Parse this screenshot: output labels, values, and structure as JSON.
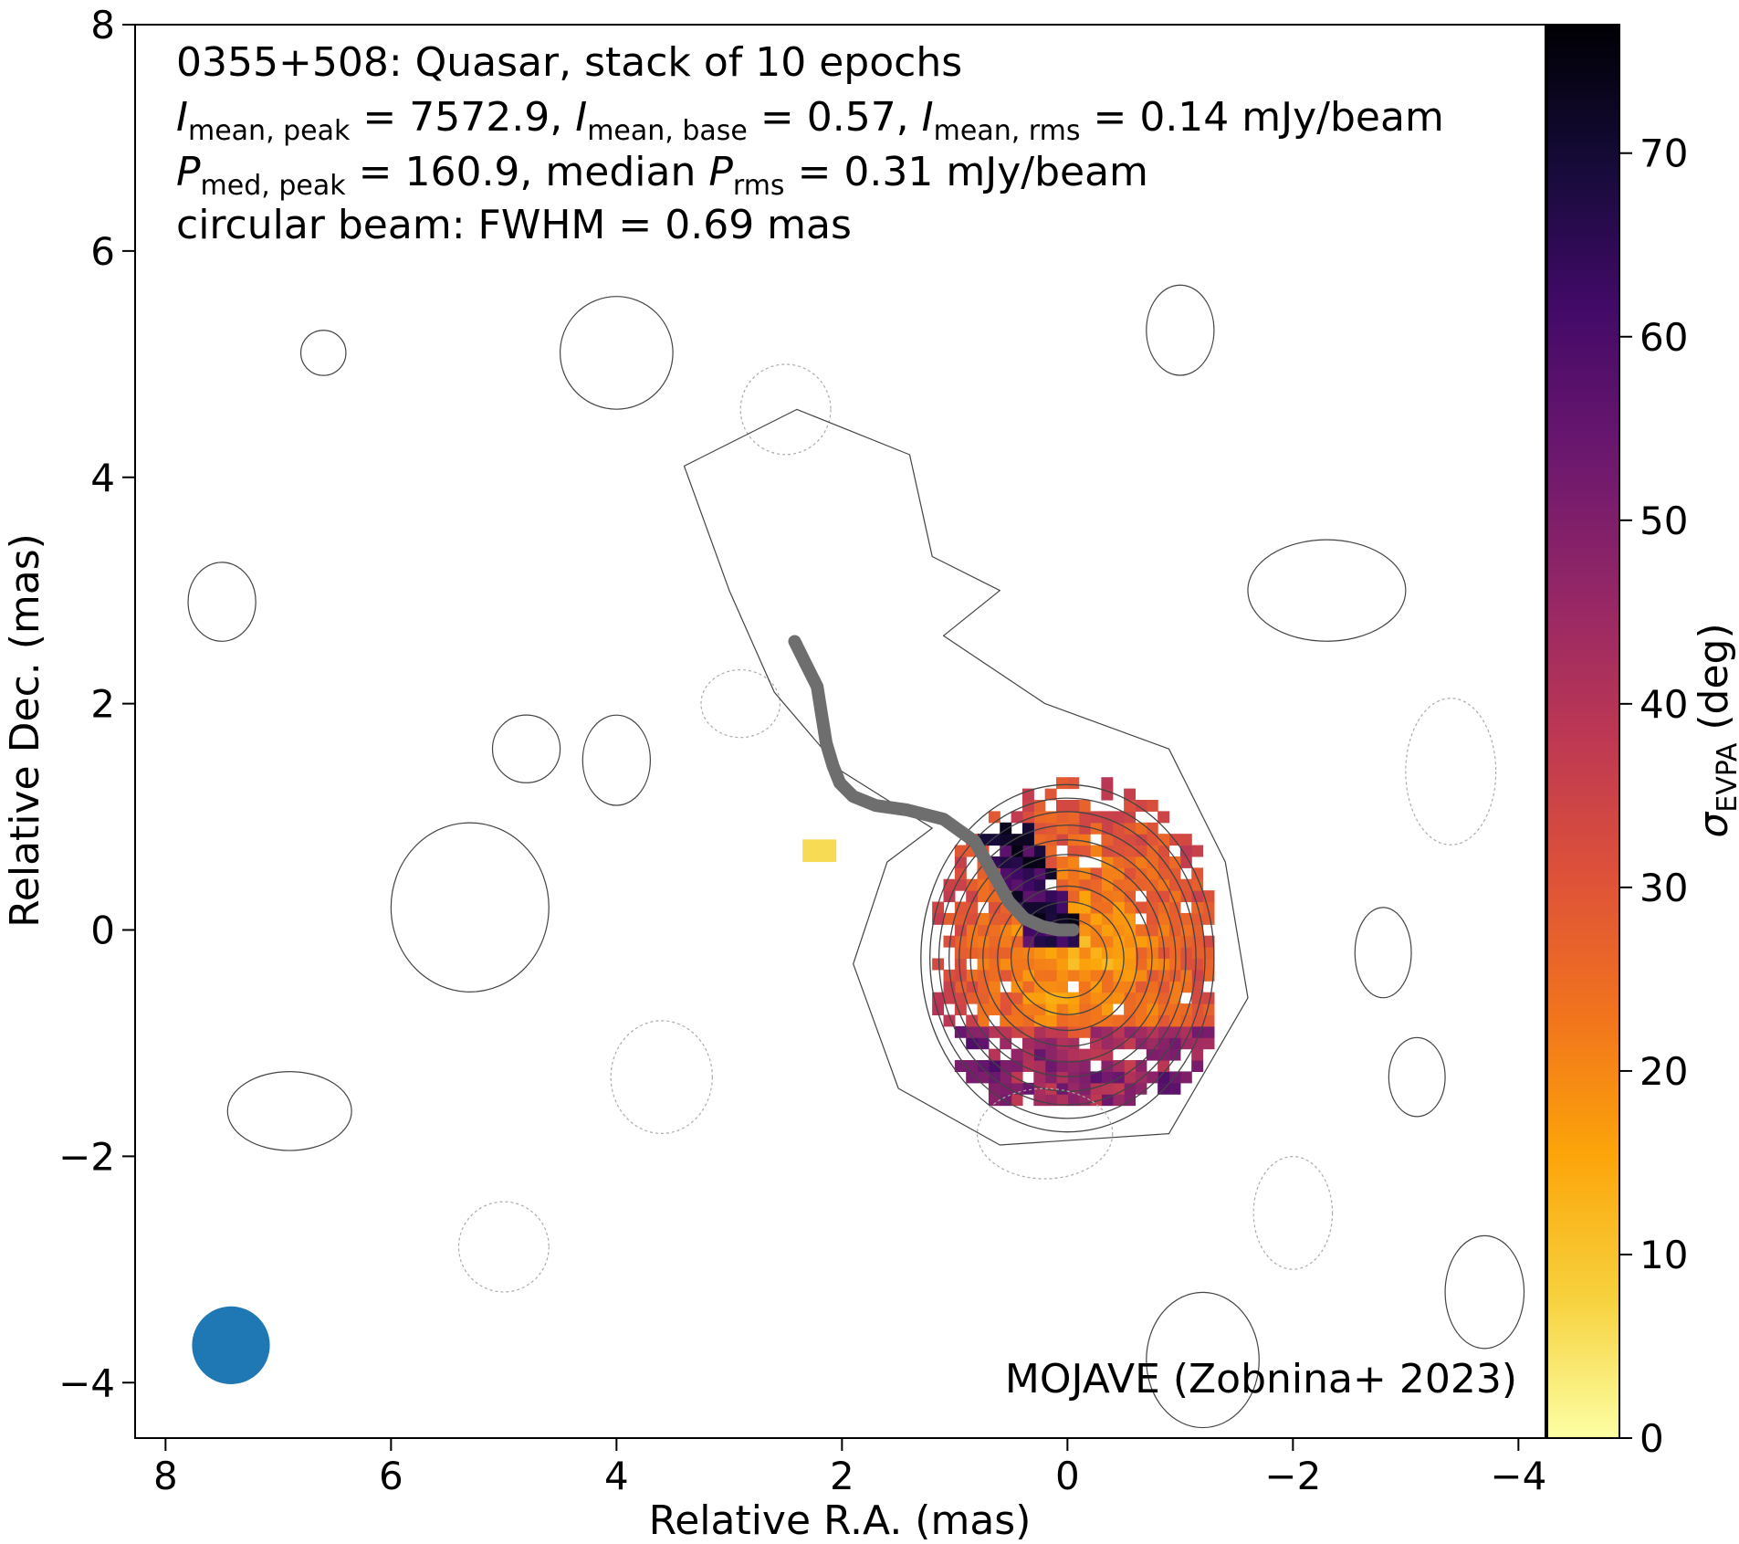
{
  "chart_data": {
    "type": "heatmap",
    "xlabel": "Relative R.A. (mas)",
    "ylabel": "Relative Dec. (mas)",
    "xlim": [
      8.27,
      -4.24
    ],
    "ylim": [
      -4.49,
      8.0
    ],
    "x_ticks": [
      8,
      6,
      4,
      2,
      0,
      -2,
      -4
    ],
    "y_ticks": [
      8,
      6,
      4,
      2,
      0,
      -2,
      -4
    ],
    "x_tick_labels": [
      "8",
      "6",
      "4",
      "2",
      "0",
      "−2",
      "−4"
    ],
    "y_tick_labels": [
      "8",
      "6",
      "4",
      "2",
      "0",
      "−2",
      "−4"
    ],
    "info_lines": [
      "0355+508: Quasar, stack of 10 epochs",
      "I_mean,peak = 7572.9, I_mean,base = 0.57, I_mean,rms = 0.14 mJy/beam",
      "P_med,peak = 160.9, median P_rms = 0.31 mJy/beam",
      "circular beam: FWHM = 0.69 mas"
    ],
    "info_parts": {
      "title": "0355+508: Quasar, stack of 10 epochs",
      "i_peak_label": "mean, peak",
      "i_peak_value": "= 7572.9,",
      "i_base_label": "mean, base",
      "i_base_value": "= 0.57,",
      "i_rms_label": "mean, rms",
      "i_rms_value": "= 0.14 mJy/beam",
      "p_peak_label": "med, peak",
      "p_peak_value": "= 160.9, median",
      "p_rms_label": "rms",
      "p_rms_value": "= 0.31 mJy/beam",
      "beam": "circular beam: FWHM = 0.69 mas"
    },
    "credit": "MOJAVE (Zobnina+ 2023)",
    "colorbar": {
      "label": "σ_EVPA (deg)",
      "label_main": "σ",
      "label_sub": "EVPA",
      "label_unit": " (deg)",
      "cmap": "inferno_r",
      "range": [
        0,
        77
      ],
      "ticks": [
        0,
        10,
        20,
        30,
        40,
        50,
        60,
        70
      ]
    },
    "beam": {
      "x": 7.42,
      "y": -3.67,
      "fwhm_mas": 0.69,
      "color": "#1f77b4"
    },
    "ridge_line": {
      "color": "#6e6e6e",
      "x": [
        2.42,
        2.32,
        2.22,
        2.18,
        2.14,
        2.08,
        2.02,
        1.9,
        1.7,
        1.42,
        1.1,
        0.82,
        0.66,
        0.52,
        0.38,
        0.22,
        0.08,
        -0.05
      ],
      "y": [
        2.55,
        2.35,
        2.15,
        1.9,
        1.65,
        1.45,
        1.3,
        1.18,
        1.1,
        1.06,
        0.98,
        0.78,
        0.5,
        0.25,
        0.1,
        0.03,
        0.0,
        0.0
      ]
    },
    "contour_levels_mJy_per_beam": [
      -0.57,
      0.57,
      1.14,
      2.28,
      4.56,
      9.12,
      18.2,
      36.5,
      73.0,
      146,
      292,
      584,
      1168,
      2336,
      4672
    ],
    "evpa_sigma_map": {
      "center": [
        -0.1,
        -0.25
      ],
      "extent_x": [
        1.5,
        -1.25
      ],
      "extent_y": [
        -1.5,
        1.6
      ],
      "pixel_mas": 0.2
    }
  }
}
